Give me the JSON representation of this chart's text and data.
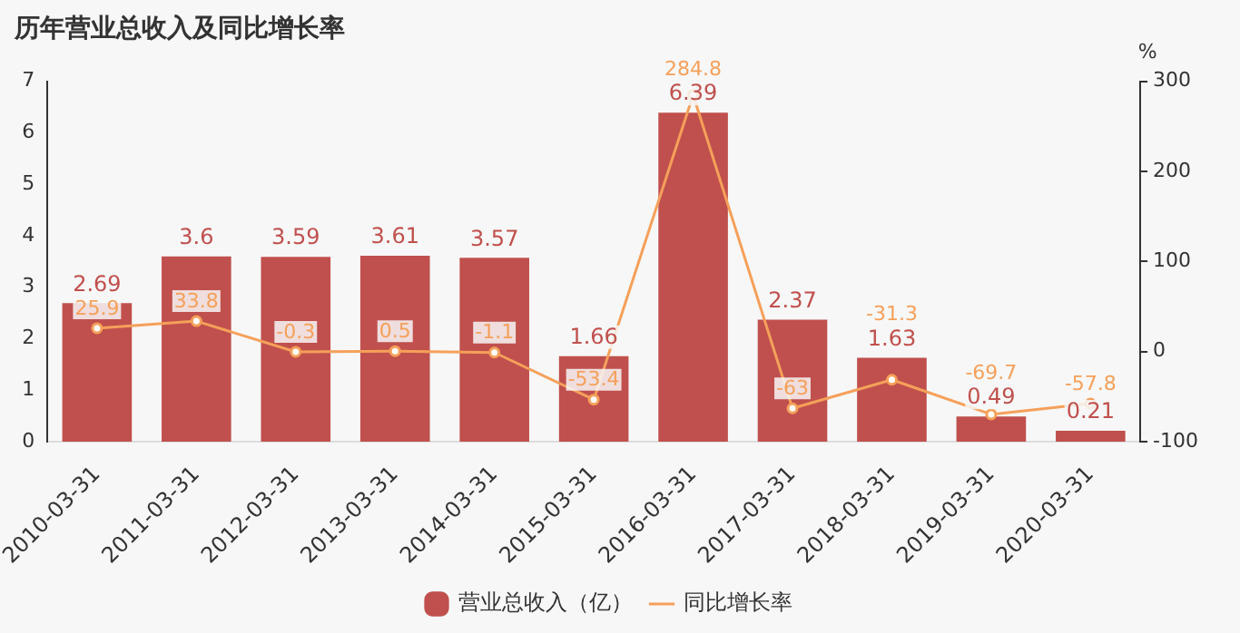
{
  "chart_data": {
    "type": "bar",
    "title": "历年营业总收入及同比增长率",
    "y2label": "%",
    "categories": [
      "2010-03-31",
      "2011-03-31",
      "2012-03-31",
      "2013-03-31",
      "2014-03-31",
      "2015-03-31",
      "2016-03-31",
      "2017-03-31",
      "2018-03-31",
      "2019-03-31",
      "2020-03-31"
    ],
    "series": [
      {
        "name": "营业总收入（亿）",
        "color": "#c0504d",
        "values": [
          2.69,
          3.6,
          3.59,
          3.61,
          3.57,
          1.66,
          6.39,
          2.37,
          1.63,
          0.49,
          0.21
        ]
      },
      {
        "name": "同比增长率",
        "type": "line",
        "axis": "y2",
        "color": "#f5a05a",
        "marker": "circle",
        "values": [
          25.9,
          33.8,
          -0.3,
          0.5,
          -1.1,
          -53.4,
          284.8,
          -63,
          -31.3,
          -69.7,
          -57.8
        ]
      }
    ],
    "ylim": [
      0,
      7
    ],
    "yticks": [
      0,
      1,
      2,
      3,
      4,
      5,
      6,
      7
    ],
    "y2lim": [
      -100,
      300
    ],
    "y2ticks": [
      -100,
      0,
      100,
      200,
      300
    ],
    "data_labels": true,
    "grid": false,
    "legend": "bottom"
  }
}
